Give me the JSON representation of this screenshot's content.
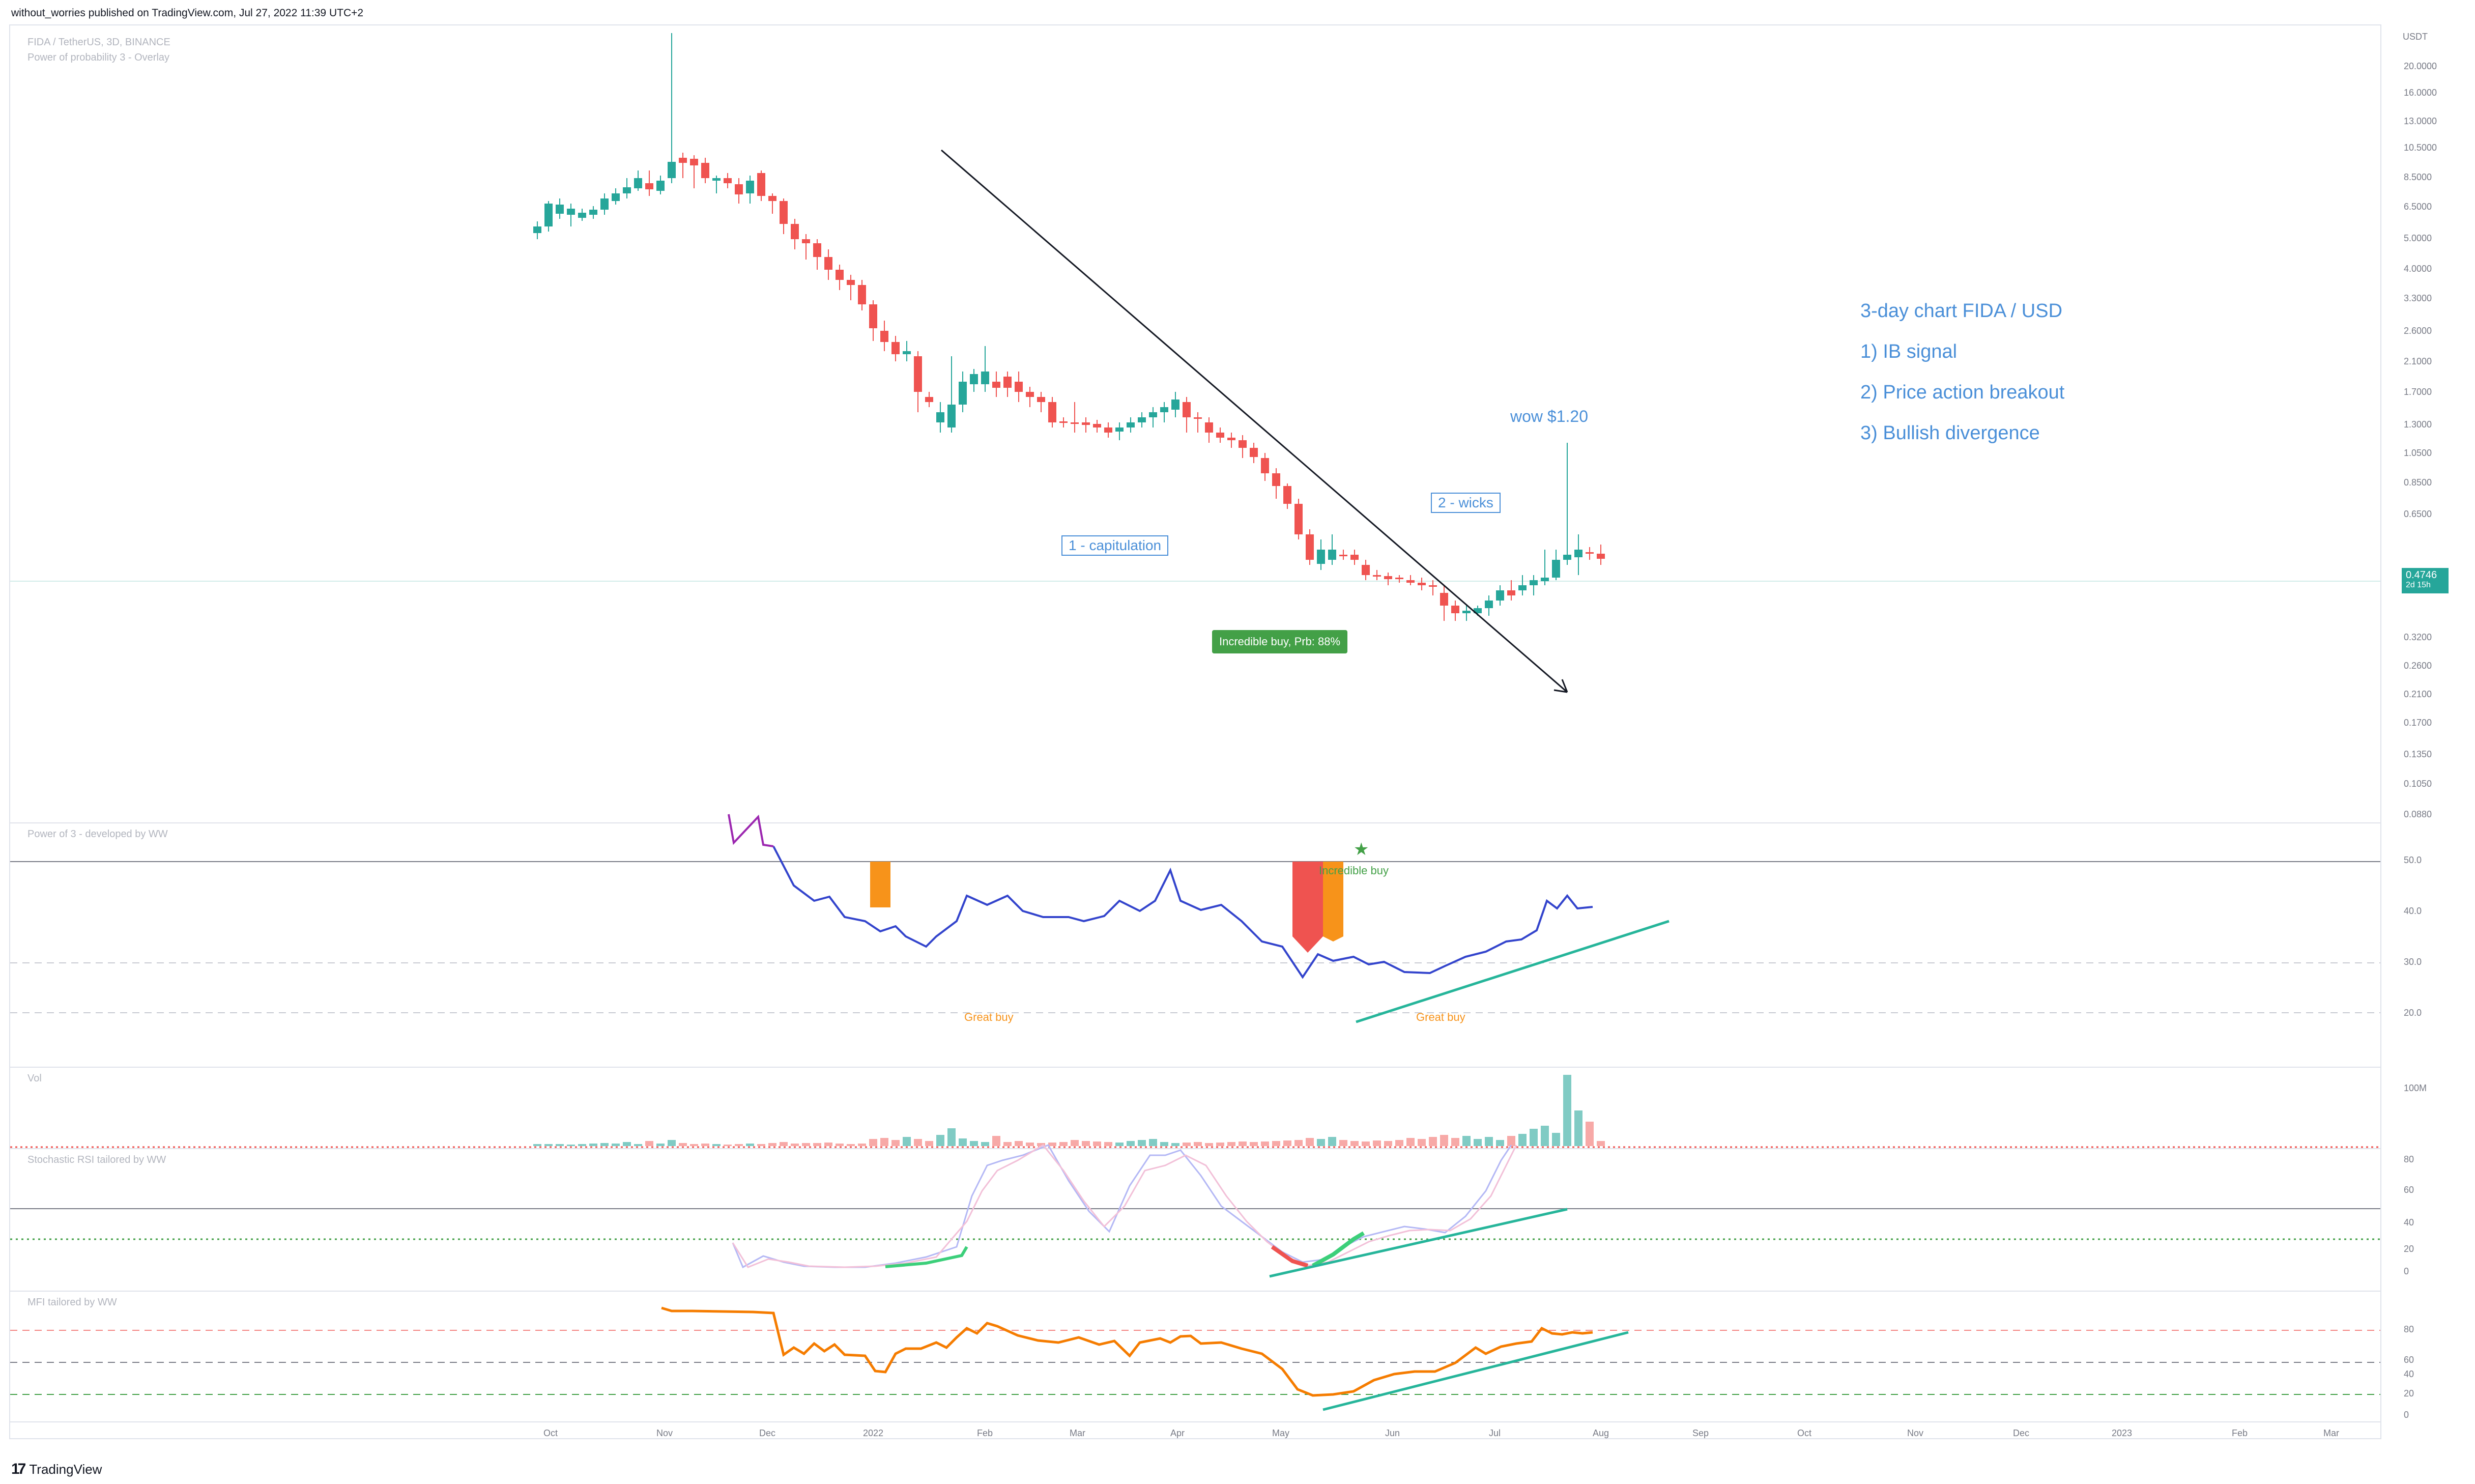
{
  "header": {
    "published": "without_worries published on TradingView.com, Jul 27, 2022 11:39 UTC+2"
  },
  "legends": {
    "symbol": "FIDA / TetherUS, 3D, BINANCE",
    "overlay": "Power of probability 3 - Overlay",
    "power3": "Power of 3 - developed by WW",
    "vol": "Vol",
    "stoch": "Stochastic RSI tailored by WW",
    "mfi": "MFI tailored by WW"
  },
  "annotations": {
    "capitulation": "1 - capitulation",
    "wicks": "2 - wicks",
    "wow": "wow $1.20",
    "incredible_buy_badge": "Incredible buy, Prb: 88%",
    "incredible_buy": "Incredible buy",
    "great_buy_1": "Great buy",
    "great_buy_2": "Great buy"
  },
  "notes": {
    "line1": "3-day chart FIDA / USD",
    "line2": "1) IB signal",
    "line3": "2) Price action breakout",
    "line4": "3) Bullish divergence"
  },
  "price_axis": {
    "currency": "USDT",
    "ticks": [
      "20.0000",
      "16.0000",
      "13.0000",
      "10.5000",
      "8.5000",
      "6.5000",
      "5.0000",
      "4.0000",
      "3.3000",
      "2.6000",
      "2.1000",
      "1.7000",
      "1.3000",
      "1.0500",
      "0.8500",
      "0.6500",
      "0.3200",
      "0.2600",
      "0.2100",
      "0.1700",
      "0.1350",
      "0.1050",
      "0.0880"
    ],
    "current_price": "0.4746",
    "countdown": "2d 15h"
  },
  "power3_axis": [
    "50.0",
    "40.0",
    "30.0",
    "20.0"
  ],
  "vol_axis": [
    "100M"
  ],
  "stoch_axis": [
    "80",
    "60",
    "40",
    "20",
    "0"
  ],
  "mfi_axis": [
    "80",
    "60",
    "40",
    "20",
    "0"
  ],
  "x_axis": [
    "Oct",
    "Nov",
    "Dec",
    "2022",
    "Feb",
    "Mar",
    "Apr",
    "May",
    "Jun",
    "Jul",
    "Aug",
    "Sep",
    "Oct",
    "Nov",
    "Dec",
    "2023",
    "Feb",
    "Mar"
  ],
  "footer": {
    "logo": "17",
    "brand": "TradingView"
  },
  "colors": {
    "up": "#26a69a",
    "down": "#ef5350",
    "line_blue": "#3344cc",
    "trend_teal": "#26b59a",
    "annotation_blue": "#4a8fd8"
  }
}
